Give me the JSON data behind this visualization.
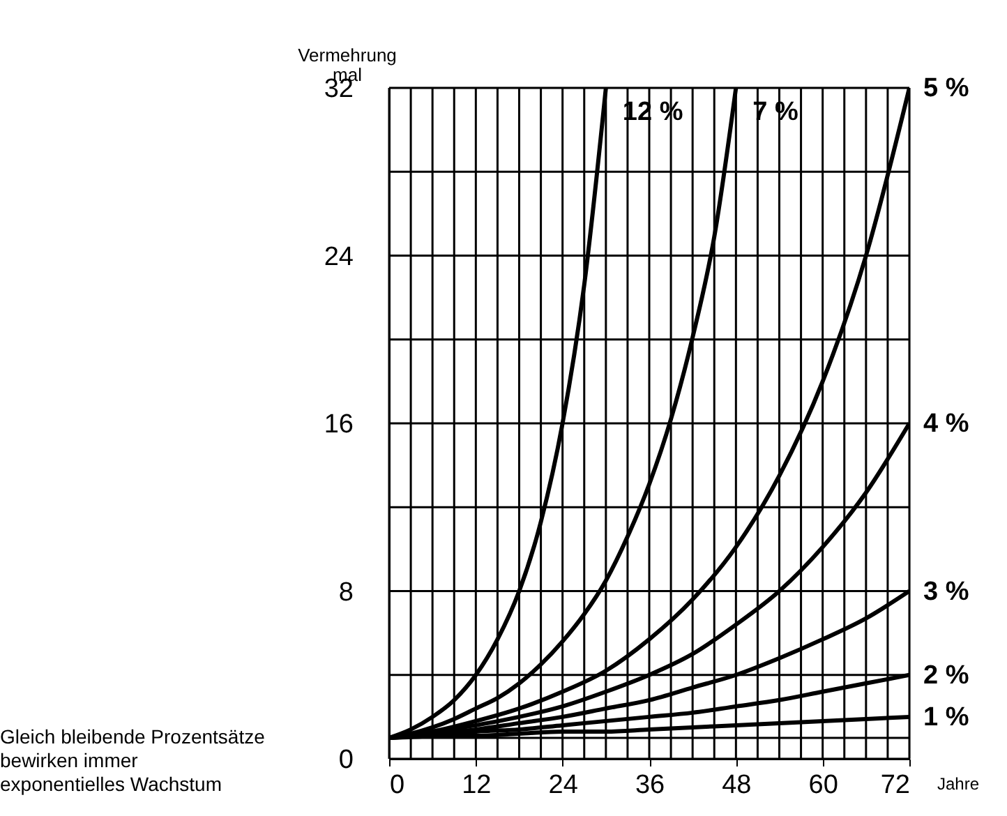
{
  "chart_data": {
    "type": "line",
    "ylabel": "Vermehrung\nmal",
    "xlabel": "Jahre",
    "annotations": [
      "Gleich bleibende Prozentsätze\nbewirken immer\nexponentielles Wachstum"
    ],
    "xlim": [
      0,
      72
    ],
    "ylim": [
      0,
      32
    ],
    "xticks": [
      0,
      {
        "value": 3,
        "label": null
      },
      {
        "value": 6,
        "label": null
      },
      {
        "value": 9,
        "label": null
      },
      12,
      {
        "value": 15,
        "label": null
      },
      {
        "value": 18,
        "label": null
      },
      {
        "value": 21,
        "label": null
      },
      24,
      {
        "value": 27,
        "label": null
      },
      {
        "value": 30,
        "label": null
      },
      {
        "value": 33,
        "label": null
      },
      36,
      {
        "value": 39,
        "label": null
      },
      {
        "value": 42,
        "label": null
      },
      {
        "value": 45,
        "label": null
      },
      48,
      {
        "value": 51,
        "label": null
      },
      {
        "value": 54,
        "label": null
      },
      {
        "value": 57,
        "label": null
      },
      60,
      {
        "value": 63,
        "label": null
      },
      {
        "value": 66,
        "label": null
      },
      {
        "value": 69,
        "label": null
      },
      72
    ],
    "yticks": [
      0,
      {
        "value": 1,
        "label": null
      },
      {
        "value": 4,
        "label": null
      },
      8,
      {
        "value": 12,
        "label": null
      },
      16,
      {
        "value": 20,
        "label": null
      },
      24,
      {
        "value": 28,
        "label": null
      },
      32
    ],
    "grid": true,
    "marker": "none",
    "line_style": "solid",
    "series": [
      {
        "name": "12 %",
        "color": "#000000",
        "x": [
          0,
          3,
          6,
          9,
          12,
          15,
          18,
          21,
          24,
          27,
          30
        ],
        "values": [
          1,
          1.4,
          2,
          2.8,
          4,
          5.7,
          8,
          11.3,
          16,
          22.6,
          32
        ]
      },
      {
        "name": "7 %",
        "color": "#000000",
        "x": [
          0,
          3,
          6,
          9,
          12,
          15,
          18,
          21,
          24,
          27,
          30,
          33,
          36,
          39,
          42,
          45,
          48
        ],
        "values": [
          1,
          1.2,
          1.5,
          1.9,
          2.4,
          2.9,
          3.6,
          4.5,
          5.6,
          6.9,
          8.5,
          10.6,
          13.1,
          16.2,
          20.1,
          24.9,
          32
        ]
      },
      {
        "name": "5 %",
        "color": "#000000",
        "x": [
          0,
          6,
          12,
          18,
          24,
          30,
          36,
          42,
          48,
          54,
          60,
          66,
          72
        ],
        "values": [
          1,
          1.3,
          1.8,
          2.4,
          3.2,
          4.2,
          5.7,
          7.6,
          10.1,
          13.5,
          18,
          24,
          32
        ]
      },
      {
        "name": "4 %",
        "color": "#000000",
        "x": [
          0,
          6,
          12,
          18,
          24,
          30,
          36,
          42,
          48,
          54,
          60,
          66,
          72
        ],
        "values": [
          1,
          1.3,
          1.6,
          2,
          2.5,
          3.2,
          4,
          5,
          6.4,
          8,
          10.1,
          12.7,
          16
        ]
      },
      {
        "name": "3 %",
        "color": "#000000",
        "x": [
          0,
          6,
          12,
          18,
          24,
          30,
          36,
          42,
          48,
          54,
          60,
          66,
          72
        ],
        "values": [
          1,
          1.2,
          1.4,
          1.7,
          2,
          2.4,
          2.8,
          3.4,
          4,
          4.8,
          5.7,
          6.7,
          8
        ]
      },
      {
        "name": "2 %",
        "color": "#000000",
        "x": [
          0,
          6,
          12,
          18,
          24,
          30,
          36,
          42,
          48,
          54,
          60,
          66,
          72
        ],
        "values": [
          1,
          1.1,
          1.3,
          1.4,
          1.6,
          1.8,
          2,
          2.2,
          2.5,
          2.8,
          3.2,
          3.6,
          4
        ]
      },
      {
        "name": "1 %",
        "color": "#000000",
        "x": [
          0,
          6,
          12,
          18,
          24,
          30,
          36,
          42,
          48,
          54,
          60,
          66,
          72
        ],
        "values": [
          1,
          1.1,
          1.1,
          1.2,
          1.3,
          1.3,
          1.4,
          1.5,
          1.6,
          1.7,
          1.8,
          1.9,
          2
        ]
      }
    ]
  }
}
